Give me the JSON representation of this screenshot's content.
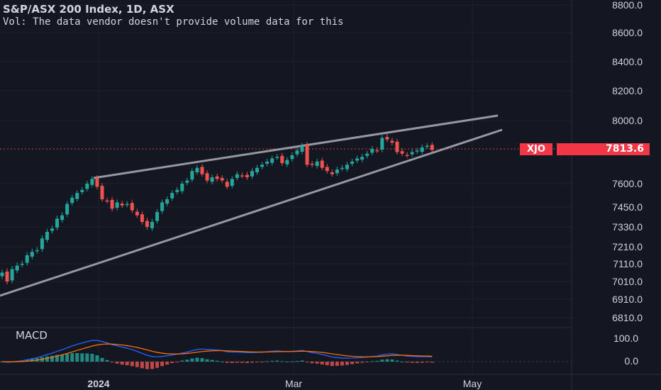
{
  "legend": {
    "title": "S&P/ASX 200 Index, 1D, ASX",
    "volume_note": "Vol: The data vendor doesn't provide volume data for this"
  },
  "macd_label": "MACD",
  "price_tag": {
    "symbol": "XJO",
    "value": "7813.6",
    "color": "#f23645"
  },
  "colors": {
    "up": "#26a69a",
    "down": "#ef5350",
    "macd": "#2962ff",
    "signal": "#ff6d00",
    "trendline": "#9598a1"
  },
  "chart_data": {
    "type": "candlestick",
    "title": "S&P/ASX 200 Index, 1D, ASX",
    "y_axis_ticks": [
      "8800.0",
      "8600.0",
      "8400.0",
      "8200.0",
      "8000.0",
      "7600.0",
      "7450.0",
      "7330.0",
      "7210.0",
      "7110.0",
      "7010.0",
      "6910.0",
      "6810.0"
    ],
    "x_axis_ticks": [
      "2024",
      "Mar",
      "May"
    ],
    "last_price": 7813.6,
    "series": [
      {
        "date": "2023-12-04",
        "close": 7060
      },
      {
        "date": "2023-12-05",
        "close": 7010
      },
      {
        "date": "2023-12-06",
        "close": 7080
      },
      {
        "date": "2023-12-07",
        "close": 7100
      },
      {
        "date": "2023-12-08",
        "close": 7110
      },
      {
        "date": "2023-12-11",
        "close": 7160
      },
      {
        "date": "2023-12-12",
        "close": 7180
      },
      {
        "date": "2023-12-13",
        "close": 7190
      },
      {
        "date": "2023-12-14",
        "close": 7260
      },
      {
        "date": "2023-12-15",
        "close": 7300
      },
      {
        "date": "2023-12-18",
        "close": 7320
      },
      {
        "date": "2023-12-19",
        "close": 7380
      },
      {
        "date": "2023-12-20",
        "close": 7400
      },
      {
        "date": "2023-12-21",
        "close": 7470
      },
      {
        "date": "2023-12-22",
        "close": 7510
      },
      {
        "date": "2023-12-27",
        "close": 7540
      },
      {
        "date": "2023-12-28",
        "close": 7560
      },
      {
        "date": "2023-12-29",
        "close": 7600
      },
      {
        "date": "2024-01-02",
        "close": 7630
      },
      {
        "date": "2024-01-03",
        "close": 7580
      },
      {
        "date": "2024-01-04",
        "close": 7500
      },
      {
        "date": "2024-01-05",
        "close": 7490
      },
      {
        "date": "2024-01-08",
        "close": 7440
      },
      {
        "date": "2024-01-09",
        "close": 7480
      },
      {
        "date": "2024-01-10",
        "close": 7460
      },
      {
        "date": "2024-01-11",
        "close": 7470
      },
      {
        "date": "2024-01-12",
        "close": 7430
      },
      {
        "date": "2024-01-15",
        "close": 7400
      },
      {
        "date": "2024-01-16",
        "close": 7360
      },
      {
        "date": "2024-01-17",
        "close": 7330
      },
      {
        "date": "2024-01-18",
        "close": 7360
      },
      {
        "date": "2024-01-19",
        "close": 7420
      },
      {
        "date": "2024-01-22",
        "close": 7480
      },
      {
        "date": "2024-01-23",
        "close": 7500
      },
      {
        "date": "2024-01-24",
        "close": 7540
      },
      {
        "date": "2024-01-25",
        "close": 7560
      },
      {
        "date": "2024-01-29",
        "close": 7600
      },
      {
        "date": "2024-01-30",
        "close": 7620
      },
      {
        "date": "2024-01-31",
        "close": 7680
      },
      {
        "date": "2024-02-01",
        "close": 7700
      },
      {
        "date": "2024-02-02",
        "close": 7660
      },
      {
        "date": "2024-02-05",
        "close": 7620
      },
      {
        "date": "2024-02-06",
        "close": 7640
      },
      {
        "date": "2024-02-07",
        "close": 7630
      },
      {
        "date": "2024-02-08",
        "close": 7620
      },
      {
        "date": "2024-02-09",
        "close": 7580
      },
      {
        "date": "2024-02-12",
        "close": 7630
      },
      {
        "date": "2024-02-13",
        "close": 7660
      },
      {
        "date": "2024-02-14",
        "close": 7650
      },
      {
        "date": "2024-02-15",
        "close": 7640
      },
      {
        "date": "2024-02-16",
        "close": 7680
      },
      {
        "date": "2024-02-19",
        "close": 7700
      },
      {
        "date": "2024-02-20",
        "close": 7720
      },
      {
        "date": "2024-02-21",
        "close": 7740
      },
      {
        "date": "2024-02-22",
        "close": 7760
      },
      {
        "date": "2024-02-23",
        "close": 7770
      },
      {
        "date": "2024-02-26",
        "close": 7730
      },
      {
        "date": "2024-02-27",
        "close": 7750
      },
      {
        "date": "2024-02-28",
        "close": 7780
      },
      {
        "date": "2024-02-29",
        "close": 7810
      },
      {
        "date": "2024-03-01",
        "close": 7840
      },
      {
        "date": "2024-03-04",
        "close": 7720
      },
      {
        "date": "2024-03-05",
        "close": 7720
      },
      {
        "date": "2024-03-06",
        "close": 7740
      },
      {
        "date": "2024-03-07",
        "close": 7700
      },
      {
        "date": "2024-03-08",
        "close": 7680
      },
      {
        "date": "2024-03-11",
        "close": 7660
      },
      {
        "date": "2024-03-12",
        "close": 7690
      },
      {
        "date": "2024-03-13",
        "close": 7700
      },
      {
        "date": "2024-03-14",
        "close": 7720
      },
      {
        "date": "2024-03-15",
        "close": 7740
      },
      {
        "date": "2024-03-18",
        "close": 7760
      },
      {
        "date": "2024-03-19",
        "close": 7770
      },
      {
        "date": "2024-03-20",
        "close": 7790
      },
      {
        "date": "2024-03-21",
        "close": 7820
      },
      {
        "date": "2024-03-22",
        "close": 7810
      },
      {
        "date": "2024-03-25",
        "close": 7890
      },
      {
        "date": "2024-03-26",
        "close": 7880
      },
      {
        "date": "2024-03-27",
        "close": 7860
      },
      {
        "date": "2024-03-28",
        "close": 7800
      },
      {
        "date": "2024-04-02",
        "close": 7790
      },
      {
        "date": "2024-04-03",
        "close": 7780
      },
      {
        "date": "2024-04-04",
        "close": 7800
      },
      {
        "date": "2024-04-05",
        "close": 7810
      },
      {
        "date": "2024-04-08",
        "close": 7830
      },
      {
        "date": "2024-04-09",
        "close": 7840
      },
      {
        "date": "2024-04-10",
        "close": 7813.6
      }
    ]
  }
}
